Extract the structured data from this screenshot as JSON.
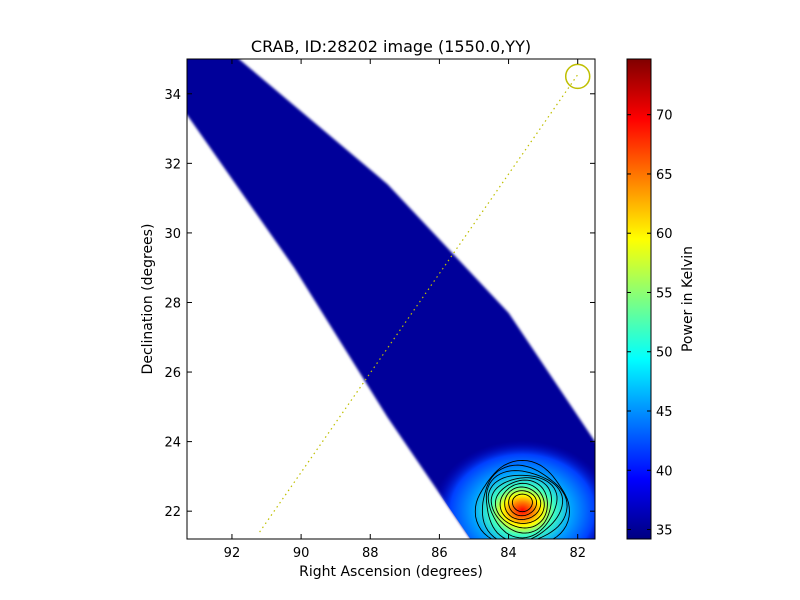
{
  "chart_data": {
    "type": "heatmap",
    "title": "CRAB, ID:28202 image (1550.0,YY)",
    "xlabel": "Right Ascension (degrees)",
    "ylabel": "Declination (degrees)",
    "xlim": [
      93.3,
      81.5
    ],
    "ylim": [
      21.2,
      35.0
    ],
    "x_ticks": [
      92,
      90,
      88,
      86,
      84,
      82
    ],
    "y_ticks": [
      22,
      24,
      26,
      28,
      30,
      32,
      34
    ],
    "colorbar": {
      "label": "Power in Kelvin",
      "range": [
        34.2,
        74.7
      ],
      "ticks": [
        35,
        40,
        45,
        50,
        55,
        60,
        65,
        70
      ],
      "colormap": "jet"
    },
    "background_level": 35,
    "coverage_strip": {
      "left_edge": [
        [
          93.3,
          33.4
        ],
        [
          90.2,
          29.0
        ],
        [
          87.5,
          24.7
        ],
        [
          86.2,
          22.8
        ],
        [
          85.1,
          21.2
        ]
      ],
      "right_edge": [
        [
          91.8,
          35.0
        ],
        [
          87.5,
          31.4
        ],
        [
          84.0,
          27.7
        ],
        [
          81.5,
          24.0
        ]
      ]
    },
    "source": {
      "ra": 83.6,
      "dec": 22.25,
      "peak": 74,
      "contour_levels": [
        38,
        41,
        44,
        48,
        52,
        56,
        60,
        64,
        68,
        72
      ]
    },
    "track": {
      "start": [
        91.2,
        21.4
      ],
      "end": [
        82.0,
        34.55
      ],
      "color": "#bfbf00"
    },
    "marker_circle": {
      "ra": 82.0,
      "dec": 34.5,
      "color": "#bfbf00"
    }
  }
}
